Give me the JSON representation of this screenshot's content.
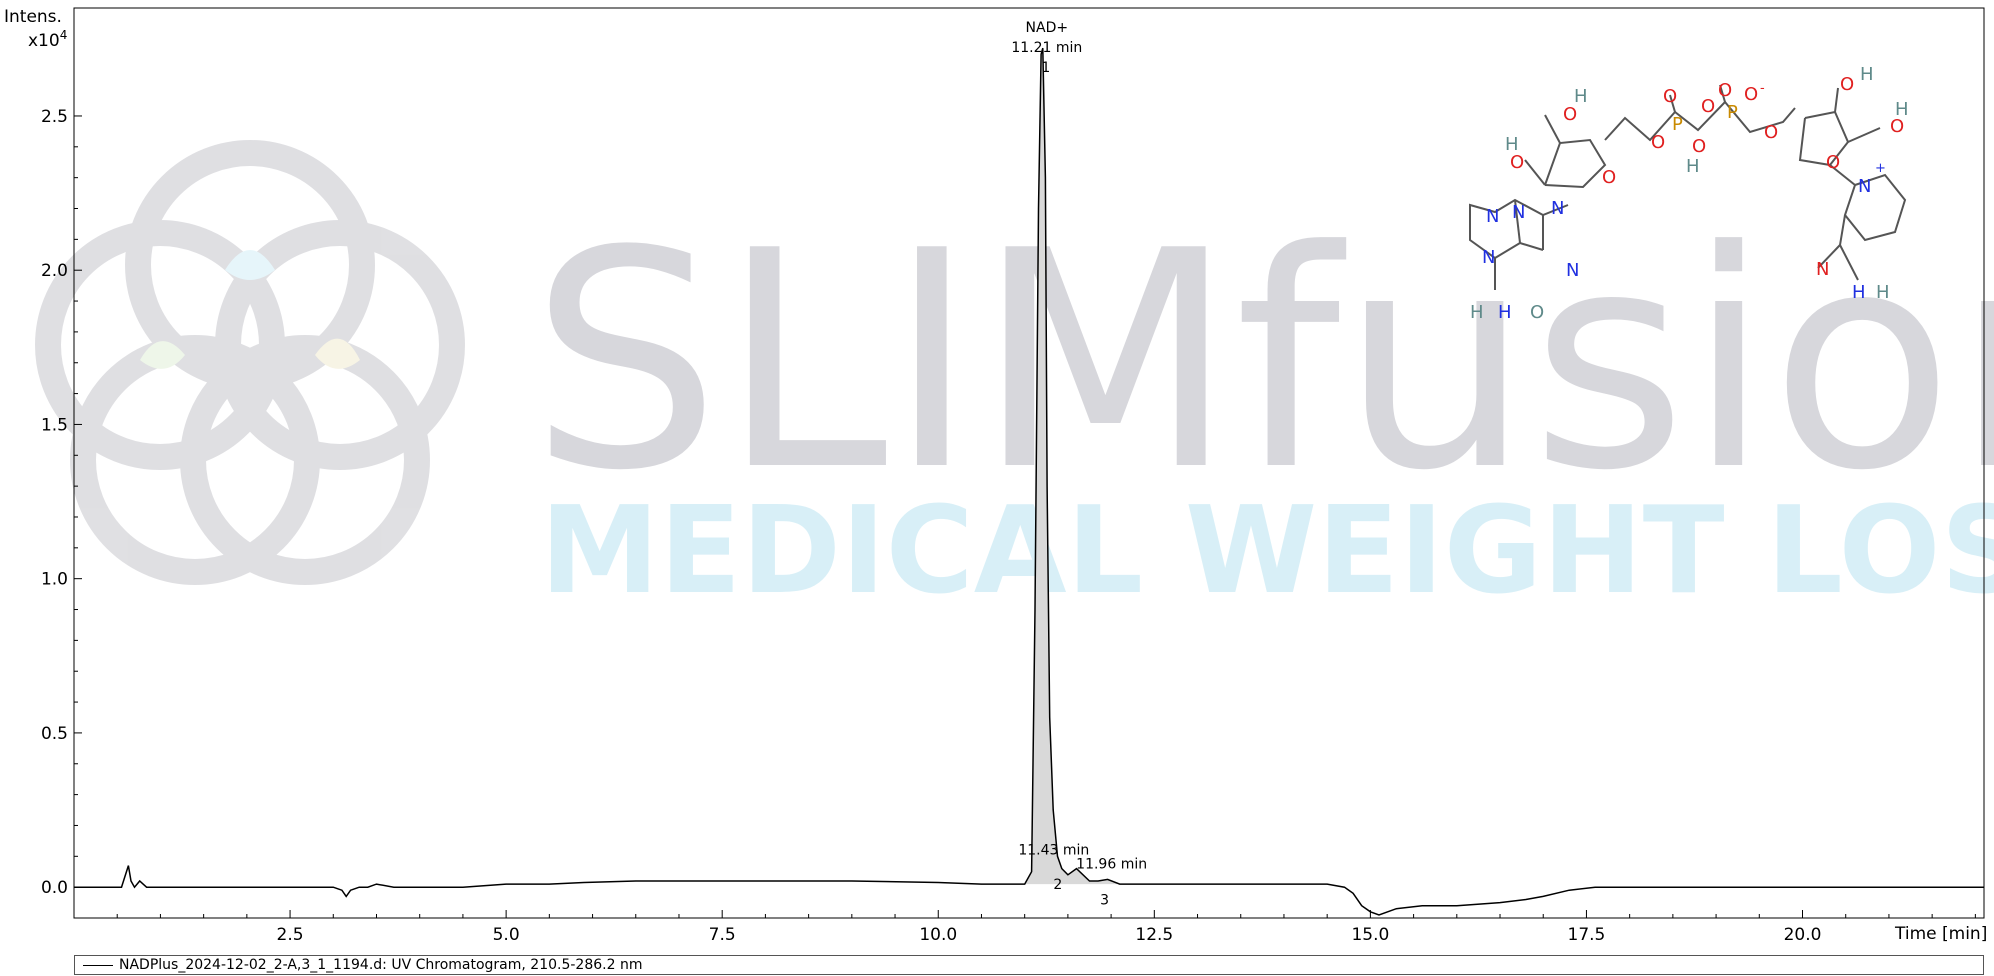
{
  "watermark": {
    "brand_word": "SLIMfusion",
    "tagline": "MEDICAL WEIGHT LOSS",
    "brand_color": "#b8b8c0",
    "tagline_color": "#d3eef6"
  },
  "chart_data": {
    "type": "line",
    "ylabel": "Intens.",
    "ylabel_multiplier": "x10",
    "ylabel_exponent": "4",
    "xlabel": "Time [min]",
    "xlim": [
      0.0,
      22.1
    ],
    "ylim": [
      -0.1,
      2.85
    ],
    "x_ticks": [
      2.5,
      5.0,
      7.5,
      10.0,
      12.5,
      15.0,
      17.5,
      20.0
    ],
    "x_tick_labels": [
      "2.5",
      "5.0",
      "7.5",
      "10.0",
      "12.5",
      "15.0",
      "17.5",
      "20.0"
    ],
    "y_ticks": [
      0.0,
      0.5,
      1.0,
      1.5,
      2.0,
      2.5
    ],
    "y_tick_labels": [
      "0.0",
      "0.5",
      "1.0",
      "1.5",
      "2.0",
      "2.5"
    ],
    "grid": false,
    "line_color": "#000000",
    "peak_fill_color": "#d9d9d9",
    "series": [
      {
        "name": "NADPlus_2024-12-02_2-A,3_1_1194.d: UV Chromatogram, 210.5-286.2 nm",
        "x": [
          0.0,
          0.55,
          0.63,
          0.66,
          0.7,
          0.76,
          0.8,
          0.84,
          0.9,
          1.0,
          1.5,
          2.0,
          2.5,
          3.0,
          3.1,
          3.15,
          3.2,
          3.3,
          3.4,
          3.5,
          3.7,
          4.0,
          4.5,
          5.0,
          5.5,
          5.9,
          6.5,
          7.0,
          7.5,
          8.0,
          9.0,
          10.0,
          10.5,
          11.0,
          11.08,
          11.12,
          11.16,
          11.19,
          11.21,
          11.24,
          11.26,
          11.29,
          11.33,
          11.38,
          11.43,
          11.5,
          11.6,
          11.75,
          11.85,
          11.96,
          12.1,
          12.5,
          13.0,
          13.5,
          14.0,
          14.5,
          14.7,
          14.8,
          14.9,
          15.0,
          15.1,
          15.3,
          15.6,
          16.0,
          16.5,
          16.8,
          17.0,
          17.3,
          17.6,
          18.0,
          18.5,
          19.0,
          20.0,
          21.0,
          22.1
        ],
        "y": [
          0.0,
          0.0,
          0.07,
          0.02,
          0.0,
          0.02,
          0.01,
          0.0,
          0.0,
          0.0,
          0.0,
          0.0,
          0.0,
          0.0,
          -0.01,
          -0.03,
          -0.01,
          0.0,
          0.0,
          0.01,
          0.0,
          0.0,
          0.0,
          0.01,
          0.01,
          0.015,
          0.02,
          0.02,
          0.02,
          0.02,
          0.02,
          0.015,
          0.01,
          0.01,
          0.05,
          0.9,
          2.2,
          2.7,
          2.72,
          2.3,
          1.3,
          0.55,
          0.25,
          0.1,
          0.06,
          0.04,
          0.06,
          0.02,
          0.02,
          0.025,
          0.01,
          0.01,
          0.01,
          0.01,
          0.01,
          0.01,
          0.0,
          -0.02,
          -0.06,
          -0.08,
          -0.09,
          -0.07,
          -0.06,
          -0.06,
          -0.05,
          -0.04,
          -0.03,
          -0.01,
          0.0,
          0.0,
          0.0,
          0.0,
          0.0,
          0.0,
          0.0
        ]
      }
    ],
    "peaks": [
      {
        "number": "1",
        "name": "NAD+",
        "time": 11.21,
        "label": "11.21 min",
        "height": 2.72
      },
      {
        "number": "2",
        "time": 11.43,
        "label": "11.43 min",
        "height": 0.06
      },
      {
        "number": "3",
        "time": 11.96,
        "label": "11.96 min",
        "height": 0.025
      }
    ]
  },
  "structure": {
    "name": "NAD+",
    "atom_labels": [
      "H",
      "O",
      "H",
      "O",
      "O",
      "O",
      "P",
      "O",
      "H",
      "O",
      "O",
      "P",
      "O",
      "O",
      "-",
      "O",
      "O",
      "H",
      "O",
      "H",
      "O",
      "N",
      "+",
      "N",
      "N",
      "N",
      "N",
      "N",
      "H",
      "H",
      "O",
      "N",
      "H",
      "H"
    ]
  }
}
